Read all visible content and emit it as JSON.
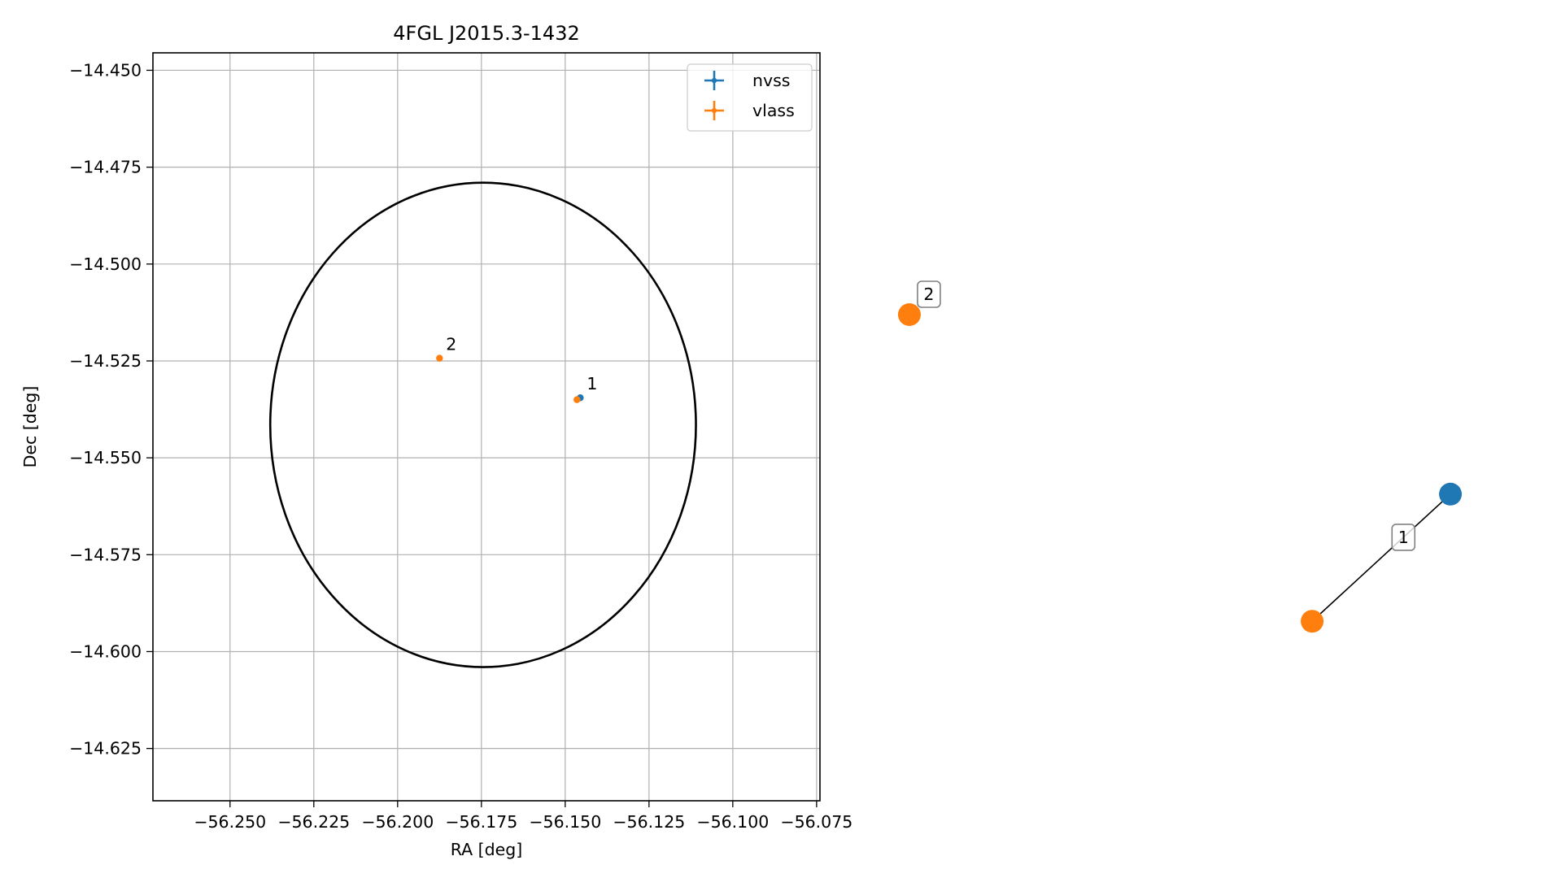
{
  "chart_data": [
    {
      "type": "scatter",
      "title": "4FGL J2015.3-1432",
      "xlabel": "RA [deg]",
      "ylabel": "Dec [deg]",
      "xlim": [
        -56.273,
        -56.074
      ],
      "ylim": [
        -14.6385,
        -14.4455
      ],
      "x_ticks": [
        -56.25,
        -56.225,
        -56.2,
        -56.175,
        -56.15,
        -56.125,
        -56.1,
        -56.075
      ],
      "x_tick_labels": [
        "−56.250",
        "−56.225",
        "−56.200",
        "−56.175",
        "−56.150",
        "−56.125",
        "−56.100",
        "−56.075"
      ],
      "y_ticks": [
        -14.45,
        -14.475,
        -14.5,
        -14.525,
        -14.55,
        -14.575,
        -14.6,
        -14.625
      ],
      "y_tick_labels": [
        "−14.450",
        "−14.475",
        "−14.500",
        "−14.525",
        "−14.550",
        "−14.575",
        "−14.600",
        "−14.625"
      ],
      "grid": true,
      "legend": "top-right",
      "ellipse": {
        "center": [
          -56.1745,
          -14.5415
        ],
        "semi_ra": 0.0635,
        "semi_dec": 0.0625,
        "color": "#000000"
      },
      "series": [
        {
          "name": "nvss",
          "color": "#1f77b4",
          "points": [
            {
              "x": -56.1455,
              "y": -14.5345
            }
          ]
        },
        {
          "name": "vlass",
          "color": "#ff7f0e",
          "points": [
            {
              "x": -56.1465,
              "y": -14.535
            },
            {
              "x": -56.1875,
              "y": -14.5243
            }
          ]
        }
      ],
      "annotations": [
        {
          "text": "1",
          "x": -56.1455,
          "y": -14.5345
        },
        {
          "text": "2",
          "x": -56.1875,
          "y": -14.5243
        }
      ]
    },
    {
      "type": "scatter",
      "title": "",
      "axes_visible": false,
      "xlim": [
        0,
        1
      ],
      "ylim": [
        0,
        1
      ],
      "nodes": [
        {
          "label": "2",
          "color": "#ff7f0e",
          "x": 0.05,
          "y": 0.65
        },
        {
          "label": "",
          "color": "#1f77b4",
          "x": 0.95,
          "y": 0.41
        },
        {
          "label": "",
          "color": "#ff7f0e",
          "x": 0.72,
          "y": 0.24
        }
      ],
      "edges": [
        {
          "from": 1,
          "to": 2,
          "label": "1"
        }
      ]
    }
  ]
}
